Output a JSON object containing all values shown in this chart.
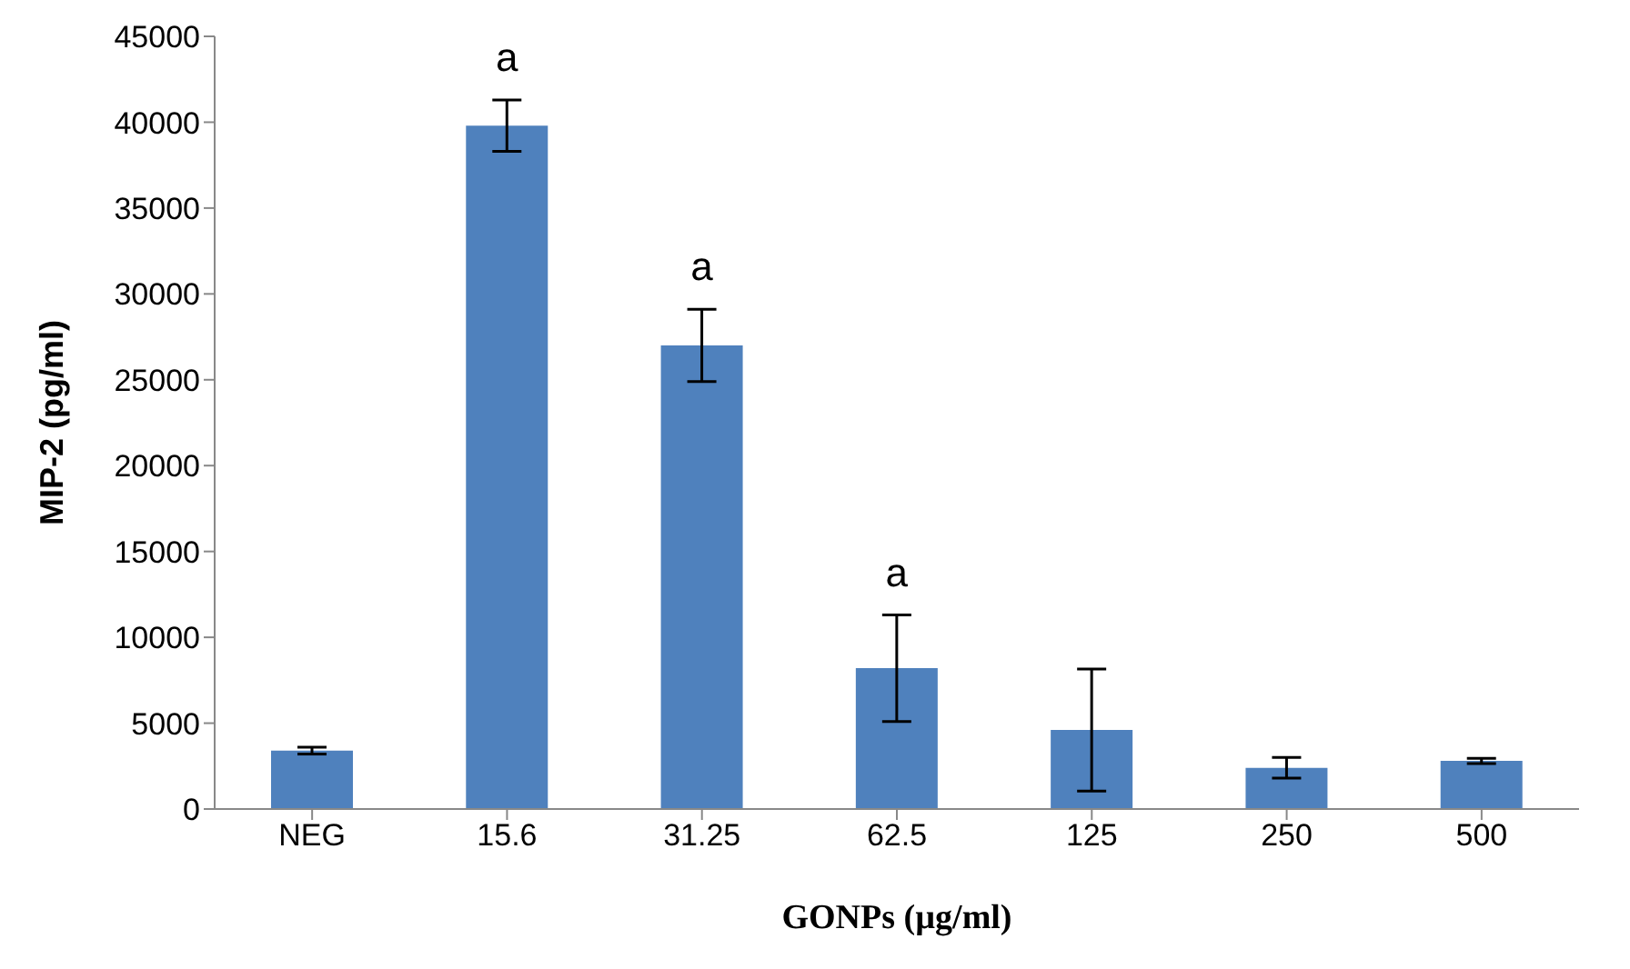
{
  "chart_data": {
    "type": "bar",
    "xlabel": "GONPs (µg/ml)",
    "ylabel": "MIP-2 (pg/ml)",
    "categories": [
      "NEG",
      "15.6",
      "31.25",
      "62.5",
      "125",
      "250",
      "500"
    ],
    "values": [
      3400,
      39800,
      27000,
      8200,
      4600,
      2400,
      2800
    ],
    "value_labels": [
      null,
      "a",
      "a",
      "a",
      null,
      null,
      null
    ],
    "errors": [
      200,
      1500,
      2100,
      3100,
      3550,
      600,
      150
    ],
    "color": "#4f81bd",
    "ylim": [
      0,
      45000
    ],
    "yticks": [
      0,
      5000,
      10000,
      15000,
      20000,
      25000,
      30000,
      35000,
      40000,
      45000
    ],
    "grid": false,
    "legend": false
  }
}
